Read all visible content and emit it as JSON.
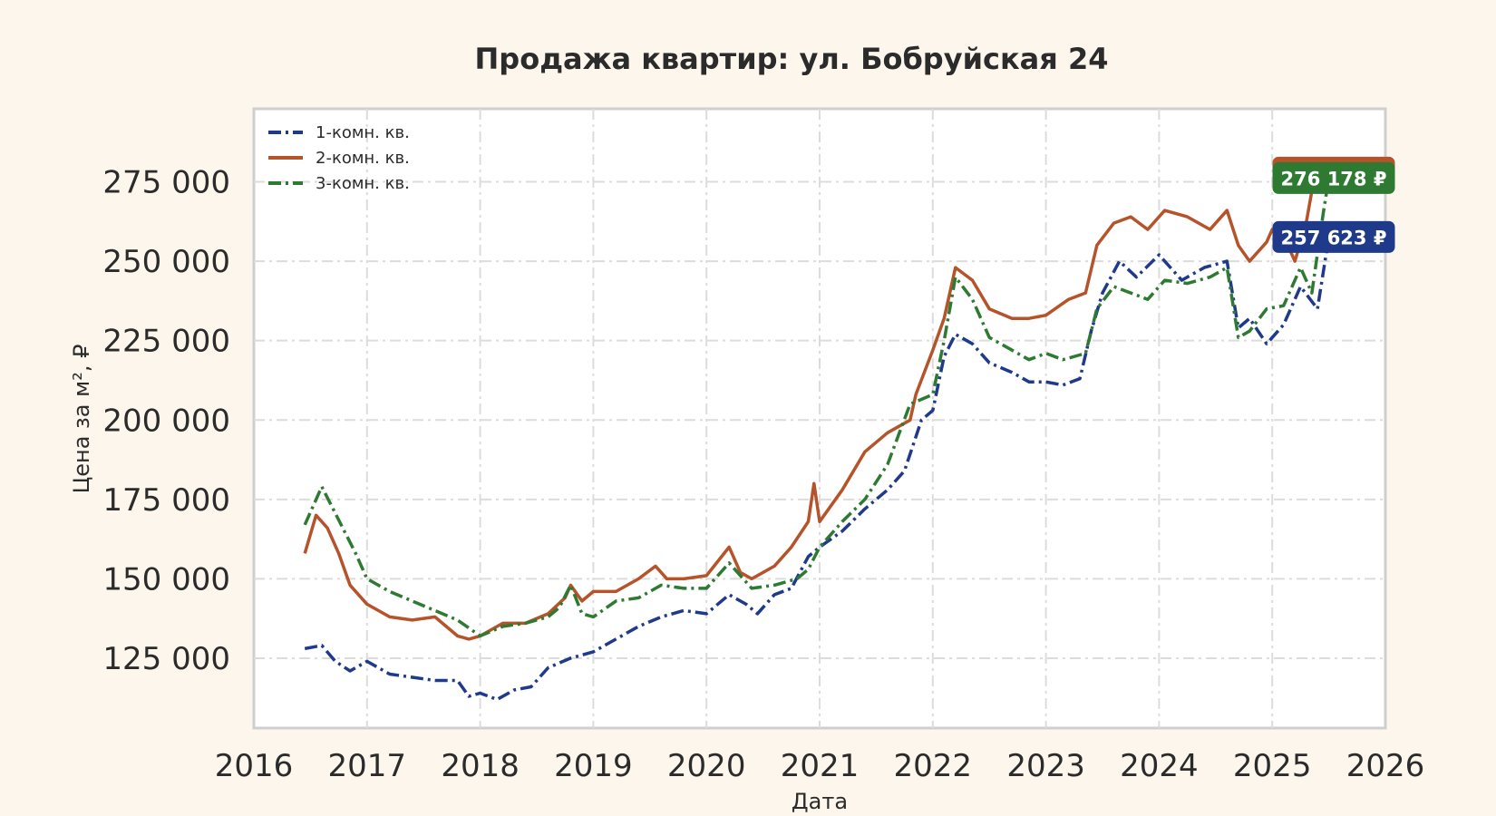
{
  "chart_data": {
    "type": "line",
    "title": "Продажа квартир: ул. Бобруйская 24",
    "xlabel": "Дата",
    "ylabel": "Цена за м², ₽",
    "xlim": [
      2016,
      2026
    ],
    "ylim": [
      103000,
      298000
    ],
    "x_ticks": [
      "2016",
      "2017",
      "2018",
      "2019",
      "2020",
      "2021",
      "2022",
      "2023",
      "2024",
      "2025",
      "2026"
    ],
    "y_ticks": [
      "125 000",
      "150 000",
      "175 000",
      "200 000",
      "225 000",
      "250 000",
      "275 000"
    ],
    "y_tick_values": [
      125000,
      150000,
      175000,
      200000,
      225000,
      250000,
      275000
    ],
    "grid": true,
    "legend_position": "top-left",
    "series": [
      {
        "name": "1-комн. кв.",
        "color": "#1f3a8a",
        "style": "dashdot",
        "last_label": "257 623 ₽",
        "x": [
          2016.45,
          2016.6,
          2016.72,
          2016.85,
          2017.0,
          2017.2,
          2017.4,
          2017.6,
          2017.8,
          2017.9,
          2018.0,
          2018.15,
          2018.3,
          2018.45,
          2018.6,
          2018.8,
          2019.0,
          2019.2,
          2019.4,
          2019.6,
          2019.8,
          2020.0,
          2020.2,
          2020.35,
          2020.45,
          2020.6,
          2020.75,
          2020.9,
          2021.0,
          2021.2,
          2021.4,
          2021.6,
          2021.75,
          2021.9,
          2022.0,
          2022.1,
          2022.2,
          2022.35,
          2022.5,
          2022.7,
          2022.85,
          2023.0,
          2023.15,
          2023.3,
          2023.4,
          2023.5,
          2023.65,
          2023.8,
          2024.0,
          2024.2,
          2024.4,
          2024.6,
          2024.7,
          2024.8,
          2024.95,
          2025.1,
          2025.25,
          2025.4,
          2025.5
        ],
        "values": [
          128000,
          129000,
          124000,
          121000,
          124000,
          120000,
          119000,
          118000,
          118000,
          113000,
          114000,
          112000,
          115000,
          116000,
          122000,
          125000,
          127000,
          131000,
          135000,
          138000,
          140000,
          139000,
          145000,
          142000,
          139000,
          145000,
          147000,
          157000,
          160000,
          165000,
          172000,
          178000,
          184000,
          200000,
          203000,
          220000,
          227000,
          224000,
          218000,
          215000,
          212000,
          212000,
          211000,
          213000,
          228000,
          240000,
          250000,
          245000,
          252000,
          244000,
          248000,
          250000,
          229000,
          232000,
          224000,
          230000,
          242000,
          235000,
          257623
        ]
      },
      {
        "name": "2-комн. кв.",
        "color": "#b5532a",
        "style": "solid",
        "last_label": "276 178 ₽",
        "x": [
          2016.45,
          2016.55,
          2016.65,
          2016.75,
          2016.85,
          2017.0,
          2017.2,
          2017.4,
          2017.6,
          2017.8,
          2017.9,
          2018.0,
          2018.1,
          2018.2,
          2018.4,
          2018.6,
          2018.75,
          2018.8,
          2018.9,
          2019.0,
          2019.2,
          2019.4,
          2019.55,
          2019.65,
          2019.8,
          2020.0,
          2020.2,
          2020.3,
          2020.4,
          2020.6,
          2020.75,
          2020.9,
          2020.95,
          2021.0,
          2021.2,
          2021.4,
          2021.6,
          2021.8,
          2021.85,
          2022.0,
          2022.1,
          2022.2,
          2022.35,
          2022.5,
          2022.7,
          2022.85,
          2023.0,
          2023.2,
          2023.35,
          2023.45,
          2023.6,
          2023.75,
          2023.9,
          2024.05,
          2024.25,
          2024.45,
          2024.6,
          2024.7,
          2024.8,
          2024.95,
          2025.0,
          2025.1,
          2025.2,
          2025.3,
          2025.4,
          2025.45,
          2025.5
        ],
        "values": [
          158000,
          170000,
          166000,
          158000,
          148000,
          142000,
          138000,
          137000,
          138000,
          132000,
          131000,
          132000,
          134000,
          136000,
          136000,
          139000,
          144000,
          148000,
          143000,
          146000,
          146000,
          150000,
          154000,
          150000,
          150000,
          151000,
          160000,
          152000,
          150000,
          154000,
          160000,
          168000,
          180000,
          168000,
          178000,
          190000,
          196000,
          200000,
          208000,
          222000,
          232000,
          248000,
          244000,
          235000,
          232000,
          232000,
          233000,
          238000,
          240000,
          255000,
          262000,
          264000,
          260000,
          266000,
          264000,
          260000,
          266000,
          255000,
          250000,
          256000,
          260000,
          258000,
          250000,
          262000,
          282000,
          280000,
          276178
        ]
      },
      {
        "name": "3-комн. кв.",
        "color": "#2e7a32",
        "style": "dashdot",
        "last_label": "276 178 ₽",
        "x": [
          2016.45,
          2016.6,
          2016.7,
          2016.8,
          2016.9,
          2017.0,
          2017.2,
          2017.4,
          2017.6,
          2017.8,
          2018.0,
          2018.2,
          2018.4,
          2018.6,
          2018.7,
          2018.8,
          2018.9,
          2019.0,
          2019.2,
          2019.4,
          2019.6,
          2019.8,
          2020.0,
          2020.2,
          2020.4,
          2020.6,
          2020.8,
          2020.9,
          2021.0,
          2021.2,
          2021.4,
          2021.6,
          2021.8,
          2022.0,
          2022.1,
          2022.2,
          2022.35,
          2022.5,
          2022.7,
          2022.85,
          2023.0,
          2023.15,
          2023.35,
          2023.45,
          2023.6,
          2023.75,
          2023.9,
          2024.05,
          2024.25,
          2024.45,
          2024.6,
          2024.7,
          2024.8,
          2024.95,
          2025.1,
          2025.25,
          2025.35,
          2025.45,
          2025.5
        ],
        "values": [
          167000,
          179000,
          172000,
          165000,
          158000,
          150000,
          146000,
          143000,
          140000,
          137000,
          132000,
          135000,
          136000,
          138000,
          141000,
          148000,
          139000,
          138000,
          143000,
          144000,
          148000,
          147000,
          147000,
          155000,
          147000,
          148000,
          150000,
          153000,
          160000,
          168000,
          175000,
          186000,
          205000,
          208000,
          225000,
          245000,
          238000,
          226000,
          222000,
          219000,
          221000,
          219000,
          221000,
          235000,
          242000,
          240000,
          238000,
          244000,
          243000,
          245000,
          248000,
          226000,
          228000,
          235000,
          236000,
          248000,
          240000,
          265000,
          276178
        ]
      }
    ]
  }
}
